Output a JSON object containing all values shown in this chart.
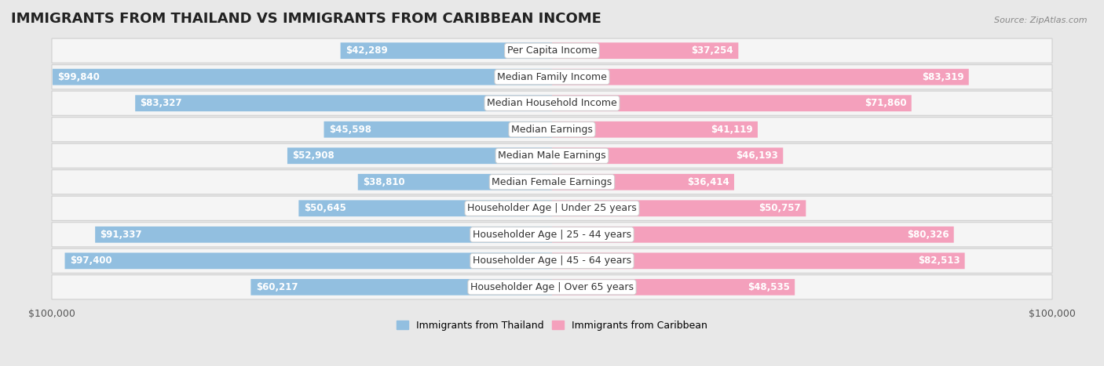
{
  "title": "IMMIGRANTS FROM THAILAND VS IMMIGRANTS FROM CARIBBEAN INCOME",
  "source": "Source: ZipAtlas.com",
  "categories": [
    "Per Capita Income",
    "Median Family Income",
    "Median Household Income",
    "Median Earnings",
    "Median Male Earnings",
    "Median Female Earnings",
    "Householder Age | Under 25 years",
    "Householder Age | 25 - 44 years",
    "Householder Age | 45 - 64 years",
    "Householder Age | Over 65 years"
  ],
  "thailand_values": [
    42289,
    99840,
    83327,
    45598,
    52908,
    38810,
    50645,
    91337,
    97400,
    60217
  ],
  "caribbean_values": [
    37254,
    83319,
    71860,
    41119,
    46193,
    36414,
    50757,
    80326,
    82513,
    48535
  ],
  "max_value": 100000,
  "thailand_color": "#92bfe0",
  "caribbean_color": "#f4a0bc",
  "thailand_label": "Immigrants from Thailand",
  "caribbean_label": "Immigrants from Caribbean",
  "background_color": "#e8e8e8",
  "row_bg_color": "#f5f5f5",
  "title_fontsize": 13,
  "value_fontsize": 8.5,
  "cat_fontsize": 9,
  "tick_fontsize": 9,
  "inside_threshold": 0.28
}
